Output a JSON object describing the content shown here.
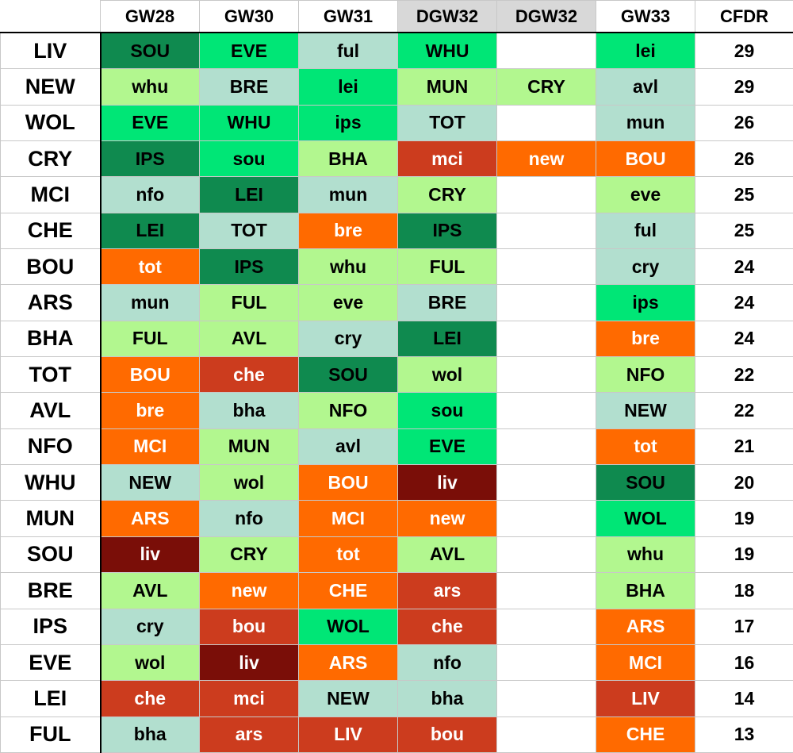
{
  "headers": [
    "",
    "GW28",
    "GW30",
    "GW31",
    "DGW32",
    "DGW32",
    "GW33",
    "CFDR"
  ],
  "double_gameweek_columns": [
    4,
    5
  ],
  "difficulty_colors": {
    "1": "#0f8a4f",
    "2": "#00e676",
    "3": "#b2f78f",
    "4": "#b2dfcf",
    "5": "#ff6a00",
    "6": "#cc3c1e",
    "7": "#7a0e08"
  },
  "text_colors": {
    "1": "#000000",
    "2": "#000000",
    "3": "#000000",
    "4": "#000000",
    "5": "#ffffff",
    "6": "#ffffff",
    "7": "#ffffff"
  },
  "rows": [
    {
      "team": "LIV",
      "cfdr": "29",
      "fixtures": [
        [
          "SOU",
          1
        ],
        [
          "EVE",
          2
        ],
        [
          "ful",
          4
        ],
        [
          "WHU",
          2
        ],
        [
          "",
          0
        ],
        [
          "lei",
          2
        ]
      ]
    },
    {
      "team": "NEW",
      "cfdr": "29",
      "fixtures": [
        [
          "whu",
          3
        ],
        [
          "BRE",
          4
        ],
        [
          "lei",
          2
        ],
        [
          "MUN",
          3
        ],
        [
          "CRY",
          3
        ],
        [
          "avl",
          4
        ]
      ]
    },
    {
      "team": "WOL",
      "cfdr": "26",
      "fixtures": [
        [
          "EVE",
          2
        ],
        [
          "WHU",
          2
        ],
        [
          "ips",
          2
        ],
        [
          "TOT",
          4
        ],
        [
          "",
          0
        ],
        [
          "mun",
          4
        ]
      ]
    },
    {
      "team": "CRY",
      "cfdr": "26",
      "fixtures": [
        [
          "IPS",
          1
        ],
        [
          "sou",
          2
        ],
        [
          "BHA",
          3
        ],
        [
          "mci",
          6
        ],
        [
          "new",
          5
        ],
        [
          "BOU",
          5
        ]
      ]
    },
    {
      "team": "MCI",
      "cfdr": "25",
      "fixtures": [
        [
          "nfo",
          4
        ],
        [
          "LEI",
          1
        ],
        [
          "mun",
          4
        ],
        [
          "CRY",
          3
        ],
        [
          "",
          0
        ],
        [
          "eve",
          3
        ]
      ]
    },
    {
      "team": "CHE",
      "cfdr": "25",
      "fixtures": [
        [
          "LEI",
          1
        ],
        [
          "TOT",
          4
        ],
        [
          "bre",
          5
        ],
        [
          "IPS",
          1
        ],
        [
          "",
          0
        ],
        [
          "ful",
          4
        ]
      ]
    },
    {
      "team": "BOU",
      "cfdr": "24",
      "fixtures": [
        [
          "tot",
          5
        ],
        [
          "IPS",
          1
        ],
        [
          "whu",
          3
        ],
        [
          "FUL",
          3
        ],
        [
          "",
          0
        ],
        [
          "cry",
          4
        ]
      ]
    },
    {
      "team": "ARS",
      "cfdr": "24",
      "fixtures": [
        [
          "mun",
          4
        ],
        [
          "FUL",
          3
        ],
        [
          "eve",
          3
        ],
        [
          "BRE",
          4
        ],
        [
          "",
          0
        ],
        [
          "ips",
          2
        ]
      ]
    },
    {
      "team": "BHA",
      "cfdr": "24",
      "fixtures": [
        [
          "FUL",
          3
        ],
        [
          "AVL",
          3
        ],
        [
          "cry",
          4
        ],
        [
          "LEI",
          1
        ],
        [
          "",
          0
        ],
        [
          "bre",
          5
        ]
      ]
    },
    {
      "team": "TOT",
      "cfdr": "22",
      "fixtures": [
        [
          "BOU",
          5
        ],
        [
          "che",
          6
        ],
        [
          "SOU",
          1
        ],
        [
          "wol",
          3
        ],
        [
          "",
          0
        ],
        [
          "NFO",
          3
        ]
      ]
    },
    {
      "team": "AVL",
      "cfdr": "22",
      "fixtures": [
        [
          "bre",
          5
        ],
        [
          "bha",
          4
        ],
        [
          "NFO",
          3
        ],
        [
          "sou",
          2
        ],
        [
          "",
          0
        ],
        [
          "NEW",
          4
        ]
      ]
    },
    {
      "team": "NFO",
      "cfdr": "21",
      "fixtures": [
        [
          "MCI",
          5
        ],
        [
          "MUN",
          3
        ],
        [
          "avl",
          4
        ],
        [
          "EVE",
          2
        ],
        [
          "",
          0
        ],
        [
          "tot",
          5
        ]
      ]
    },
    {
      "team": "WHU",
      "cfdr": "20",
      "fixtures": [
        [
          "NEW",
          4
        ],
        [
          "wol",
          3
        ],
        [
          "BOU",
          5
        ],
        [
          "liv",
          7
        ],
        [
          "",
          0
        ],
        [
          "SOU",
          1
        ]
      ]
    },
    {
      "team": "MUN",
      "cfdr": "19",
      "fixtures": [
        [
          "ARS",
          5
        ],
        [
          "nfo",
          4
        ],
        [
          "MCI",
          5
        ],
        [
          "new",
          5
        ],
        [
          "",
          0
        ],
        [
          "WOL",
          2
        ]
      ]
    },
    {
      "team": "SOU",
      "cfdr": "19",
      "fixtures": [
        [
          "liv",
          7
        ],
        [
          "CRY",
          3
        ],
        [
          "tot",
          5
        ],
        [
          "AVL",
          3
        ],
        [
          "",
          0
        ],
        [
          "whu",
          3
        ]
      ]
    },
    {
      "team": "BRE",
      "cfdr": "18",
      "fixtures": [
        [
          "AVL",
          3
        ],
        [
          "new",
          5
        ],
        [
          "CHE",
          5
        ],
        [
          "ars",
          6
        ],
        [
          "",
          0
        ],
        [
          "BHA",
          3
        ]
      ]
    },
    {
      "team": "IPS",
      "cfdr": "17",
      "fixtures": [
        [
          "cry",
          4
        ],
        [
          "bou",
          6
        ],
        [
          "WOL",
          2
        ],
        [
          "che",
          6
        ],
        [
          "",
          0
        ],
        [
          "ARS",
          5
        ]
      ]
    },
    {
      "team": "EVE",
      "cfdr": "16",
      "fixtures": [
        [
          "wol",
          3
        ],
        [
          "liv",
          7
        ],
        [
          "ARS",
          5
        ],
        [
          "nfo",
          4
        ],
        [
          "",
          0
        ],
        [
          "MCI",
          5
        ]
      ]
    },
    {
      "team": "LEI",
      "cfdr": "14",
      "fixtures": [
        [
          "che",
          6
        ],
        [
          "mci",
          6
        ],
        [
          "NEW",
          4
        ],
        [
          "bha",
          4
        ],
        [
          "",
          0
        ],
        [
          "LIV",
          6
        ]
      ]
    },
    {
      "team": "FUL",
      "cfdr": "13",
      "fixtures": [
        [
          "bha",
          4
        ],
        [
          "ars",
          6
        ],
        [
          "LIV",
          6
        ],
        [
          "bou",
          6
        ],
        [
          "",
          0
        ],
        [
          "CHE",
          5
        ]
      ]
    }
  ]
}
